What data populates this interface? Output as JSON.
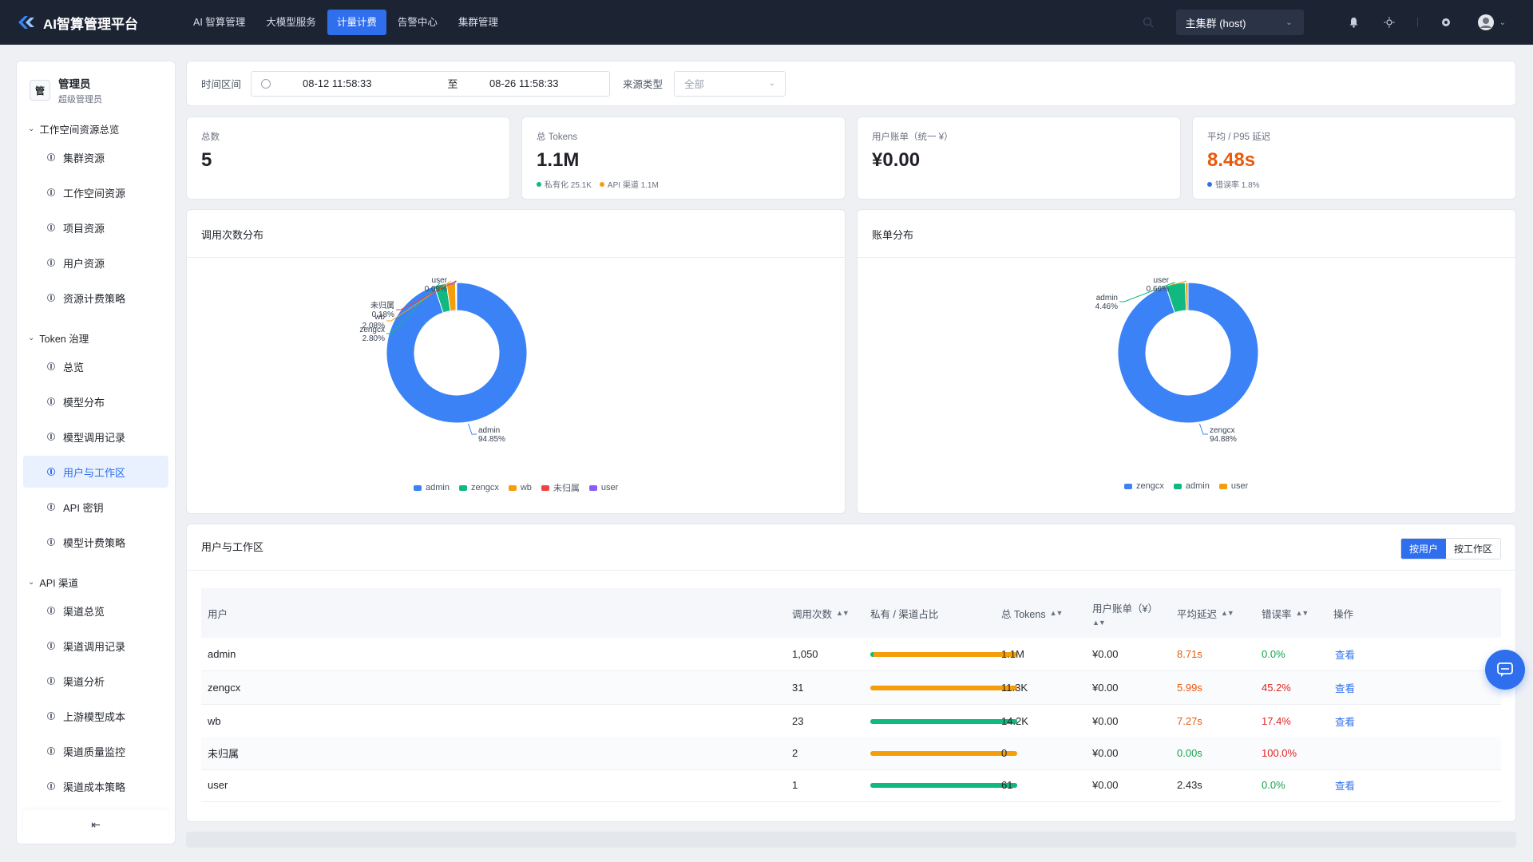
{
  "app": {
    "title": "AI智算管理平台"
  },
  "nav": {
    "items": [
      {
        "label": "AI 智算管理"
      },
      {
        "label": "大模型服务"
      },
      {
        "label": "计量计费"
      },
      {
        "label": "告警中心"
      },
      {
        "label": "集群管理"
      }
    ],
    "cluster": "主集群 (host)"
  },
  "sidebar": {
    "user": {
      "avatar": "管",
      "name": "管理员",
      "role": "超级管理员"
    },
    "groups": [
      {
        "title": "工作空间资源总览",
        "items": [
          "集群资源",
          "工作空间资源",
          "项目资源",
          "用户资源",
          "资源计费策略"
        ]
      },
      {
        "title": "Token 治理",
        "items": [
          "总览",
          "模型分布",
          "模型调用记录",
          "用户与工作区",
          "API 密钥",
          "模型计费策略"
        ]
      },
      {
        "title": "API 渠道",
        "items": [
          "渠道总览",
          "渠道调用记录",
          "渠道分析",
          "上游模型成本",
          "渠道质量监控",
          "渠道成本策略"
        ]
      }
    ],
    "active_item": "用户与工作区"
  },
  "filters": {
    "time_label": "时间区间",
    "start": "08-12 11:58:33",
    "sep": "至",
    "end": "08-26 11:58:33",
    "source_label": "来源类型",
    "source_value": "全部"
  },
  "stats": [
    {
      "label": "总数",
      "value": "5"
    },
    {
      "label": "总 Tokens",
      "value": "1.1M",
      "sub": [
        {
          "text": "私有化 25.1K",
          "color": "#10b981"
        },
        {
          "text": "API 渠道 1.1M",
          "color": "#f59e0b"
        }
      ]
    },
    {
      "label": "用户账单（统一 ¥）",
      "value": "¥0.00"
    },
    {
      "label": "平均 / P95 延迟",
      "value": "8.48s",
      "value_color": "#e8590c",
      "sub": [
        {
          "text": "错误率 1.8%",
          "color": "#2f6fed"
        }
      ]
    }
  ],
  "charts": {
    "calls_title": "调用次数分布",
    "bill_title": "账单分布"
  },
  "chart_data": [
    {
      "type": "pie",
      "title": "调用次数分布",
      "labels": [
        "admin",
        "zengcx",
        "wb",
        "未归属",
        "user"
      ],
      "values": [
        94.85,
        2.8,
        2.08,
        0.18,
        0.09
      ],
      "value_labels": [
        "94.85%",
        "2.80%",
        "2.08%",
        "0.18%",
        "0.09%"
      ],
      "colors": [
        "#3b82f6",
        "#10b981",
        "#f59e0b",
        "#ef4444",
        "#8b5cf6"
      ],
      "legend": "bottom"
    },
    {
      "type": "pie",
      "title": "账单分布",
      "labels": [
        "zengcx",
        "admin",
        "user"
      ],
      "values": [
        94.88,
        4.46,
        0.66
      ],
      "value_labels": [
        "94.88%",
        "4.46%",
        "0.66%"
      ],
      "colors": [
        "#3b82f6",
        "#10b981",
        "#f59e0b"
      ],
      "legend": "bottom"
    }
  ],
  "table": {
    "title": "用户与工作区",
    "toggle": [
      "按用户",
      "按工作区"
    ],
    "columns": [
      "用户",
      "调用次数",
      "私有 / 渠道占比",
      "总 Tokens",
      "用户账单（¥）",
      "平均延迟",
      "错误率",
      "操作"
    ],
    "rows": [
      {
        "user": "admin",
        "calls": "1,050",
        "ratio_private": 0.02,
        "tokens": "1.1M",
        "bill": "¥0.00",
        "latency": "8.71s",
        "latency_color": "#e8590c",
        "error": "0.0%",
        "error_color": "#16a34a",
        "action": "查看"
      },
      {
        "user": "zengcx",
        "calls": "31",
        "ratio_private": 0.0,
        "tokens": "11.3K",
        "bill": "¥0.00",
        "latency": "5.99s",
        "latency_color": "#e8590c",
        "error": "45.2%",
        "error_color": "#dc2626",
        "action": "查看"
      },
      {
        "user": "wb",
        "calls": "23",
        "ratio_private": 1.0,
        "tokens": "14.2K",
        "bill": "¥0.00",
        "latency": "7.27s",
        "latency_color": "#e8590c",
        "error": "17.4%",
        "error_color": "#dc2626",
        "action": "查看"
      },
      {
        "user": "未归属",
        "calls": "2",
        "ratio_private": 0.0,
        "tokens": "0",
        "bill": "¥0.00",
        "latency": "0.00s",
        "latency_color": "#16a34a",
        "error": "100.0%",
        "error_color": "#dc2626",
        "action": ""
      },
      {
        "user": "user",
        "calls": "1",
        "ratio_private": 1.0,
        "tokens": "61",
        "bill": "¥0.00",
        "latency": "2.43s",
        "latency_color": "#1f2329",
        "error": "0.0%",
        "error_color": "#16a34a",
        "action": "查看"
      }
    ]
  },
  "colors": {
    "accent": "#2f6fed",
    "private": "#10b981",
    "channel": "#f59e0b",
    "topbar": "#1c2434"
  }
}
